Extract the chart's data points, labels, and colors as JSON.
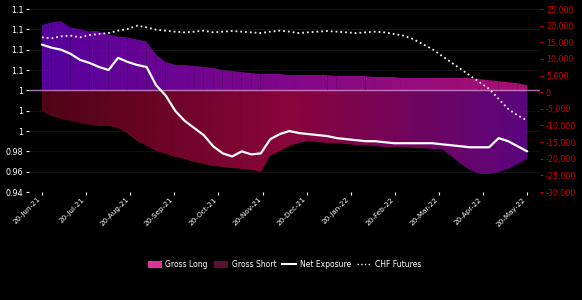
{
  "background_color": "#000000",
  "dates_labels": [
    "20-Jun-21",
    "20-Jul-21",
    "20-Aug-21",
    "20-Sep-21",
    "20-Oct-21",
    "20-Nov-21",
    "20-Dec-21",
    "20-Jan-22",
    "20-Feb-22",
    "20-Mar-22",
    "20-Apr-22",
    "20-May-22"
  ],
  "n_points": 52,
  "gross_long_upper": [
    1.104,
    1.107,
    1.108,
    1.102,
    1.1,
    1.098,
    1.098,
    1.095,
    1.093,
    1.092,
    1.09,
    1.088,
    1.075,
    1.068,
    1.065,
    1.065,
    1.064,
    1.063,
    1.062,
    1.06,
    1.059,
    1.058,
    1.057,
    1.056,
    1.056,
    1.056,
    1.055,
    1.055,
    1.055,
    1.055,
    1.055,
    1.054,
    1.054,
    1.054,
    1.054,
    1.053,
    1.053,
    1.053,
    1.052,
    1.052,
    1.052,
    1.052,
    1.052,
    1.052,
    1.052,
    1.052,
    1.051,
    1.05,
    1.049,
    1.048,
    1.047,
    1.045
  ],
  "gross_short_lower": [
    1.02,
    1.015,
    1.012,
    1.01,
    1.008,
    1.006,
    1.005,
    1.005,
    1.003,
    0.997,
    0.99,
    0.985,
    0.98,
    0.977,
    0.974,
    0.972,
    0.97,
    0.968,
    0.966,
    0.965,
    0.964,
    0.963,
    0.962,
    0.96,
    0.975,
    0.98,
    0.985,
    0.988,
    0.99,
    0.989,
    0.988,
    0.988,
    0.987,
    0.986,
    0.986,
    0.985,
    0.984,
    0.984,
    0.984,
    0.983,
    0.983,
    0.982,
    0.982,
    0.975,
    0.968,
    0.962,
    0.958,
    0.958,
    0.96,
    0.963,
    0.968,
    0.972
  ],
  "net_exposure": [
    1.085,
    1.082,
    1.08,
    1.076,
    1.07,
    1.067,
    1.063,
    1.06,
    1.072,
    1.068,
    1.065,
    1.063,
    1.045,
    1.035,
    1.02,
    1.01,
    1.003,
    0.996,
    0.985,
    0.978,
    0.975,
    0.98,
    0.977,
    0.978,
    0.992,
    0.997,
    1.0,
    0.998,
    0.997,
    0.996,
    0.995,
    0.993,
    0.992,
    0.991,
    0.99,
    0.99,
    0.989,
    0.988,
    0.988,
    0.988,
    0.988,
    0.988,
    0.987,
    0.986,
    0.985,
    0.984,
    0.984,
    0.984,
    0.993,
    0.99,
    0.985,
    0.98
  ],
  "chf_futures_right": [
    16500,
    16200,
    16800,
    17000,
    16500,
    17200,
    17500,
    17800,
    18500,
    19000,
    20000,
    19500,
    18800,
    18500,
    18200,
    18000,
    18200,
    18500,
    18000,
    18200,
    18400,
    18200,
    18000,
    17800,
    18200,
    18500,
    18200,
    17800,
    18000,
    18200,
    18400,
    18200,
    18000,
    17800,
    18000,
    18200,
    18000,
    17500,
    17000,
    16000,
    14500,
    13000,
    11000,
    9000,
    7000,
    5000,
    3000,
    1000,
    -2000,
    -5000,
    -7000,
    -8500
  ],
  "hline_y": 1.04,
  "ylim_left": [
    0.94,
    1.12
  ],
  "ylim_right": [
    -30000,
    25000
  ],
  "yticks_left": [
    0.94,
    0.96,
    0.98,
    1.0,
    1.02,
    1.04,
    1.06,
    1.08,
    1.1,
    1.12
  ],
  "yticks_right": [
    -30000,
    -25000,
    -20000,
    -15000,
    -10000,
    -5000,
    0,
    5000,
    10000,
    15000,
    20000,
    25000
  ],
  "hline_color": "#cc88cc",
  "net_exposure_color": "#ffffff",
  "right_axis_color": "#cc0000"
}
